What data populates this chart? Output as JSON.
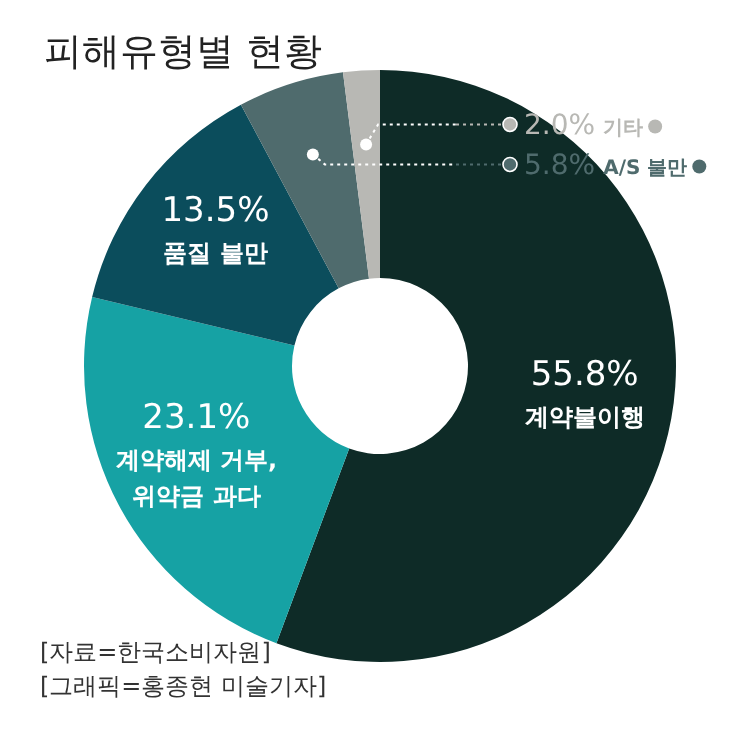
{
  "chart_data": {
    "type": "donut",
    "title": "피해유형별 현황",
    "categories": [
      "계약불이행",
      "계약해제 거부,\n위약금 과다",
      "품질 불만",
      "A/S 불만",
      "기타"
    ],
    "values": [
      55.8,
      23.1,
      13.5,
      5.8,
      2.0
    ],
    "colors": [
      "#0e2b27",
      "#16a2a4",
      "#0b4d5c",
      "#4f6b6d",
      "#b8b8b4"
    ],
    "legend": "top right",
    "value_labels": [
      "55.8%",
      "23.1%",
      "13.5%",
      "5.8%",
      "2.0%"
    ],
    "annotations": [
      "[자료=한국소비자원]",
      "[그래픽=홍종현 미술기자]"
    ]
  }
}
